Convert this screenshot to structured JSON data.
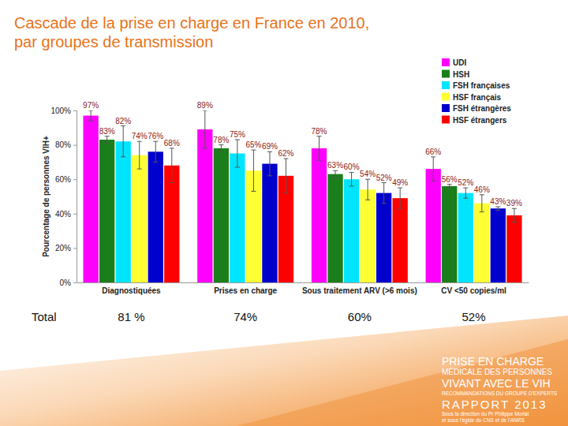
{
  "chart_data": {
    "type": "bar",
    "title": "Cascade de la prise en charge en France en 2010, par groupes de transmission",
    "y_label": "Pourcentage de personnes VIH+",
    "categories": [
      "Diagnostiquées",
      "Prises en charge",
      "Sous traitement ARV (>6 mois)",
      "CV <50 copies/ml"
    ],
    "series": [
      {
        "name": "UDI",
        "color": "#ff00ff",
        "values": [
          97,
          89,
          78,
          66
        ],
        "value_labels": [
          "97%",
          "89%",
          "78%",
          "66%"
        ],
        "errors": [
          3,
          11,
          7,
          7
        ]
      },
      {
        "name": "HSH",
        "color": "#1a7f1a",
        "values": [
          83,
          78,
          63,
          56
        ],
        "value_labels": [
          "83%",
          "78%",
          "63%",
          "56%"
        ],
        "errors": [
          2,
          2,
          2,
          1
        ]
      },
      {
        "name": "FSH françaises",
        "color": "#00e5ff",
        "values": [
          82,
          75,
          60,
          52
        ],
        "value_labels": [
          "82%",
          "75%",
          "60%",
          "52%"
        ],
        "errors": [
          9,
          8,
          4,
          3
        ]
      },
      {
        "name": "HSF français",
        "color": "#ffff33",
        "values": [
          74,
          65,
          54,
          46
        ],
        "value_labels": [
          "74%",
          "65%",
          "54%",
          "46%"
        ],
        "errors": [
          8,
          12,
          6,
          5
        ]
      },
      {
        "name": "FSH étrangères",
        "color": "#0000cc",
        "values": [
          76,
          69,
          52,
          43
        ],
        "value_labels": [
          "76%",
          "69%",
          "52%",
          "43%"
        ],
        "errors": [
          6,
          7,
          6,
          1
        ]
      },
      {
        "name": "HSF étrangers",
        "color": "#ff0000",
        "values": [
          68,
          62,
          49,
          39
        ],
        "value_labels": [
          "68%",
          "62%",
          "49%",
          "39%"
        ],
        "errors": [
          10,
          10,
          6,
          4
        ]
      }
    ],
    "ylim": [
      0,
      100
    ],
    "yticks": [
      {
        "value": 0,
        "label": "0%"
      },
      {
        "value": 20,
        "label": "20%"
      },
      {
        "value": 40,
        "label": "40%"
      },
      {
        "value": 60,
        "label": "60%"
      },
      {
        "value": 80,
        "label": "80%"
      },
      {
        "value": 100,
        "label": "100%"
      }
    ],
    "grid": false,
    "legend": "top-right",
    "data_labels": true
  },
  "totals": {
    "label": "Total",
    "values": [
      "81 %",
      "74%",
      "60%",
      "52%"
    ]
  },
  "footer": {
    "lines": [
      "PRISE EN CHARGE",
      "MÉDICALE DES PERSONNES",
      "VIVANT AVEC LE VIH",
      "RECOMMANDATIONS DU GROUPE D'EXPERTS",
      "RAPPORT 2013",
      "Sous la direction du Pr Philippe Morlat",
      "et sous l'égide du CNS et de l'ANRS"
    ]
  }
}
